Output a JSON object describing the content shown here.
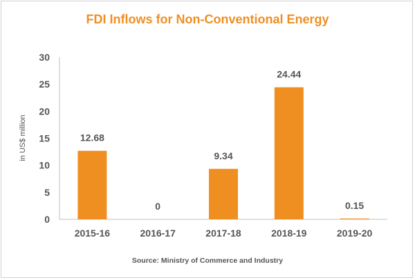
{
  "chart_data": {
    "type": "bar",
    "title": "FDI Inflows for Non-Conventional Energy",
    "ylabel": "in US$ million",
    "xlabel": "",
    "categories": [
      "2015-16",
      "2016-17",
      "2017-18",
      "2018-19",
      "2019-20"
    ],
    "values": [
      12.68,
      0,
      9.34,
      24.44,
      0.15
    ],
    "data_labels": [
      "12.68",
      "0",
      "9.34",
      "24.44",
      "0.15"
    ],
    "yticks": [
      "0",
      "5",
      "10",
      "15",
      "20",
      "25",
      "30"
    ],
    "ylim": [
      0,
      30
    ],
    "grid": false,
    "legend": "none",
    "source": "Source: Ministry of Commerce and Industry",
    "colors": {
      "bar": "#ef8f22",
      "title": "#ef8f22",
      "text": "#555555",
      "axis": "#bfbfbf"
    }
  }
}
